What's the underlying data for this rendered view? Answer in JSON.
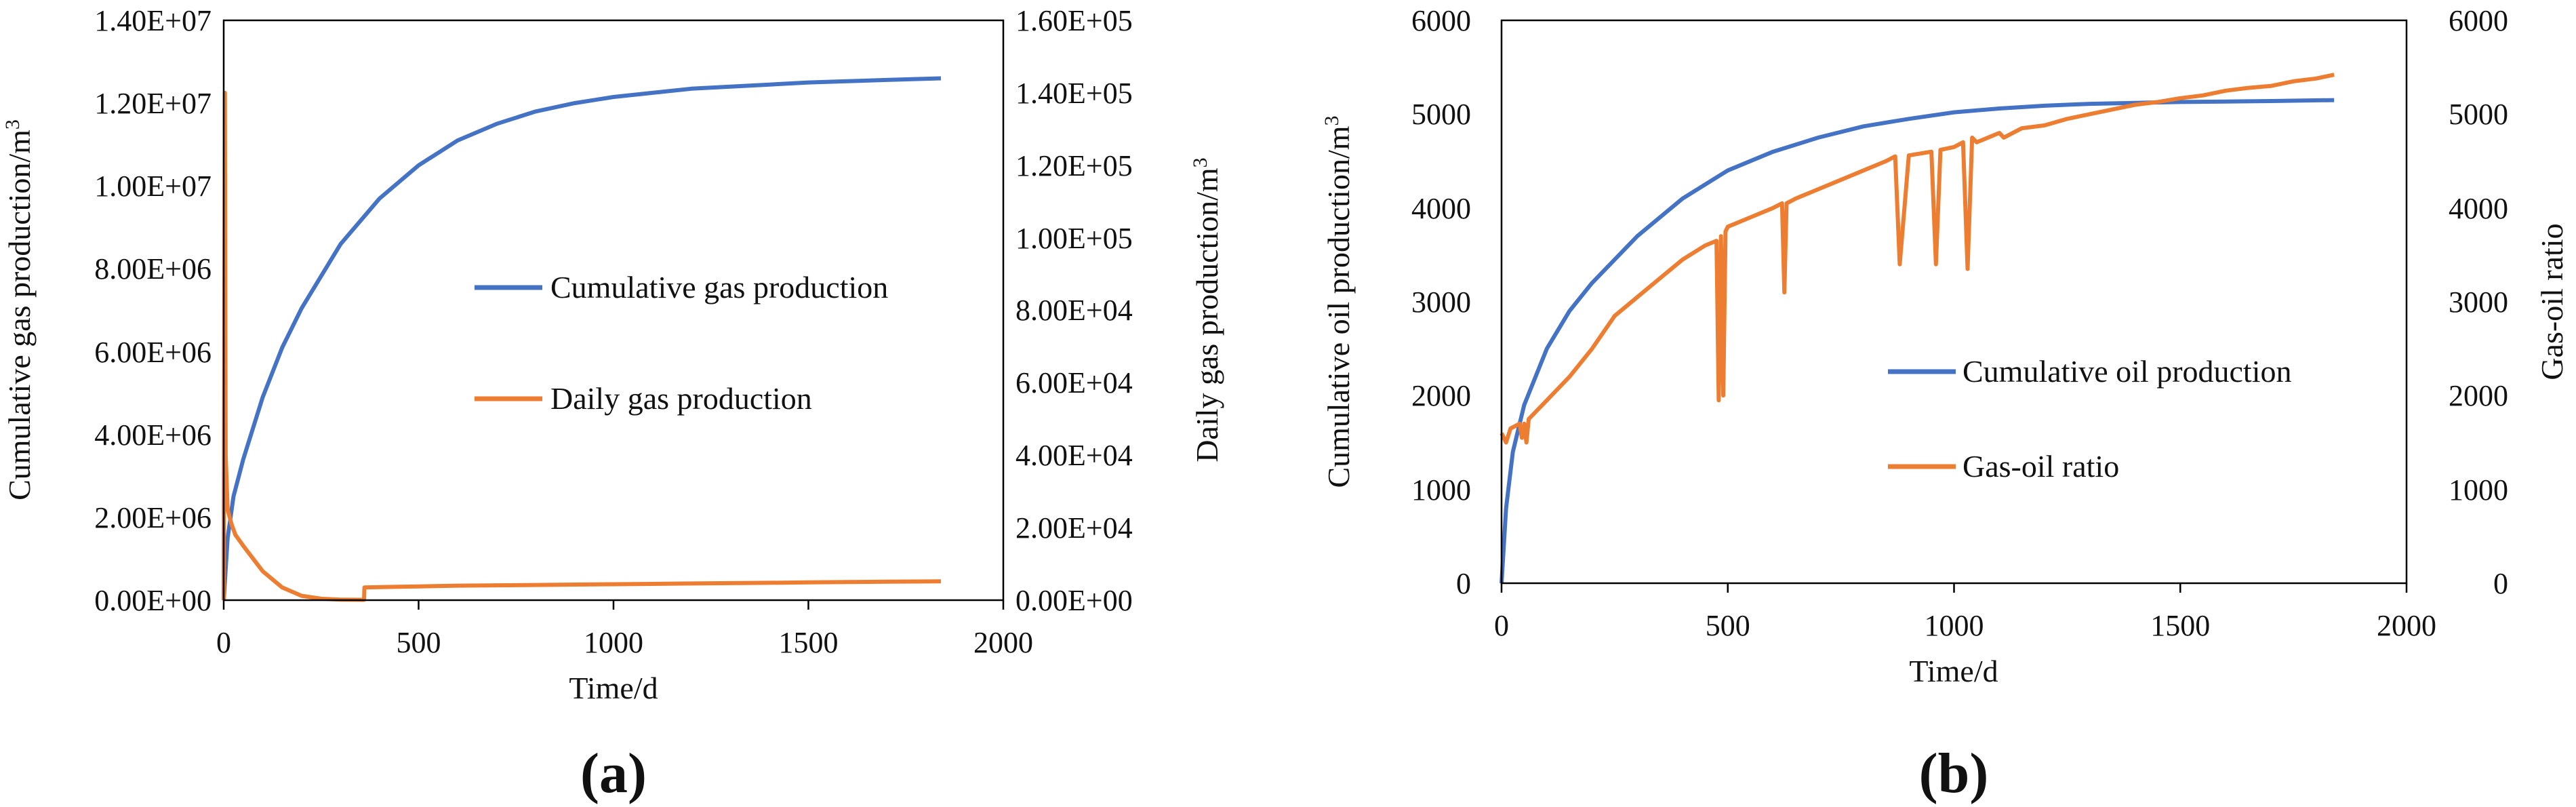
{
  "colors": {
    "blue": "#4472C4",
    "orange": "#ED7D31"
  },
  "chart_data": [
    {
      "type": "line",
      "panel_label": "(a)",
      "xlabel": "Time/d",
      "ylabel_left": "Cumulative gas production/m",
      "ylabel_left_sup": "3",
      "ylabel_right": "Daily gas production/m",
      "ylabel_right_sup": "3",
      "xlim": [
        0,
        2000
      ],
      "ylim_left": [
        0,
        14000000
      ],
      "ylim_right": [
        0,
        160000
      ],
      "x_ticks": [
        "0",
        "500",
        "1000",
        "1500",
        "2000"
      ],
      "y_left_ticks": [
        "0.00E+00",
        "2.00E+06",
        "4.00E+06",
        "6.00E+06",
        "8.00E+06",
        "1.00E+07",
        "1.20E+07",
        "1.40E+07"
      ],
      "y_right_ticks": [
        "0.00E+00",
        "2.00E+04",
        "4.00E+04",
        "6.00E+04",
        "8.00E+04",
        "1.00E+05",
        "1.20E+05",
        "1.40E+05",
        "1.60E+05"
      ],
      "legend_position": "center-right",
      "series": [
        {
          "name": "Cumulative gas production",
          "axis": "left",
          "color": "#4472C4",
          "x": [
            0,
            10,
            25,
            50,
            100,
            150,
            200,
            300,
            400,
            500,
            600,
            700,
            800,
            900,
            1000,
            1100,
            1200,
            1300,
            1400,
            1500,
            1600,
            1700,
            1840
          ],
          "y": [
            0,
            1500000,
            2500000,
            3400000,
            4900000,
            6100000,
            7050000,
            8600000,
            9700000,
            10500000,
            11100000,
            11500000,
            11800000,
            12000000,
            12150000,
            12250000,
            12350000,
            12400000,
            12450000,
            12500000,
            12530000,
            12560000,
            12600000
          ]
        },
        {
          "name": "Daily gas production",
          "axis": "right",
          "color": "#ED7D31",
          "x": [
            0,
            3,
            5,
            10,
            20,
            30,
            50,
            75,
            100,
            150,
            200,
            250,
            300,
            360,
            361,
            400,
            500,
            600,
            700,
            800,
            900,
            1000,
            1100,
            1200,
            1300,
            1400,
            1500,
            1600,
            1700,
            1840
          ],
          "y": [
            0,
            140000,
            40000,
            25000,
            21000,
            18000,
            15000,
            11500,
            8000,
            3500,
            1200,
            400,
            150,
            100,
            3500,
            3600,
            3800,
            4000,
            4100,
            4200,
            4300,
            4400,
            4500,
            4600,
            4700,
            4800,
            4900,
            5000,
            5100,
            5200
          ]
        }
      ]
    },
    {
      "type": "line",
      "panel_label": "(b)",
      "xlabel": "Time/d",
      "ylabel_left": "Cumulative oil production/m",
      "ylabel_left_sup": "3",
      "ylabel_right": "Gas-oil ratio",
      "xlim": [
        0,
        2000
      ],
      "ylim_left": [
        0,
        6000
      ],
      "ylim_right": [
        0,
        6000
      ],
      "x_ticks": [
        "0",
        "500",
        "1000",
        "1500",
        "2000"
      ],
      "y_left_ticks": [
        "0",
        "1000",
        "2000",
        "3000",
        "4000",
        "5000",
        "6000"
      ],
      "y_right_ticks": [
        "0",
        "1000",
        "2000",
        "3000",
        "4000",
        "5000",
        "6000"
      ],
      "legend_position": "center-right",
      "series": [
        {
          "name": "Cumulative oil production",
          "axis": "left",
          "color": "#4472C4",
          "x": [
            0,
            10,
            25,
            50,
            100,
            150,
            200,
            300,
            400,
            500,
            600,
            700,
            800,
            900,
            1000,
            1100,
            1200,
            1300,
            1400,
            1500,
            1600,
            1700,
            1840
          ],
          "y": [
            0,
            800,
            1400,
            1900,
            2500,
            2900,
            3200,
            3700,
            4100,
            4400,
            4600,
            4750,
            4870,
            4950,
            5020,
            5060,
            5090,
            5110,
            5120,
            5130,
            5135,
            5140,
            5150
          ]
        },
        {
          "name": "Gas-oil ratio",
          "axis": "right",
          "color": "#ED7D31",
          "x": [
            0,
            10,
            20,
            40,
            45,
            50,
            55,
            60,
            100,
            150,
            200,
            250,
            300,
            350,
            400,
            450,
            475,
            480,
            485,
            490,
            495,
            500,
            550,
            600,
            620,
            625,
            630,
            650,
            700,
            750,
            800,
            850,
            870,
            880,
            900,
            950,
            960,
            970,
            1000,
            1020,
            1030,
            1040,
            1050,
            1100,
            1110,
            1150,
            1200,
            1250,
            1300,
            1350,
            1400,
            1450,
            1500,
            1550,
            1600,
            1650,
            1700,
            1750,
            1800,
            1840
          ],
          "y": [
            1600,
            1500,
            1650,
            1700,
            1550,
            1700,
            1500,
            1750,
            1950,
            2200,
            2500,
            2850,
            3050,
            3250,
            3450,
            3600,
            3650,
            1950,
            3700,
            2000,
            3750,
            3800,
            3900,
            4000,
            4050,
            3100,
            4050,
            4100,
            4200,
            4300,
            4400,
            4500,
            4550,
            3400,
            4560,
            4600,
            3400,
            4620,
            4650,
            4700,
            3350,
            4750,
            4700,
            4800,
            4750,
            4850,
            4880,
            4950,
            5000,
            5050,
            5100,
            5130,
            5170,
            5200,
            5250,
            5280,
            5300,
            5350,
            5380,
            5420
          ]
        }
      ]
    }
  ]
}
